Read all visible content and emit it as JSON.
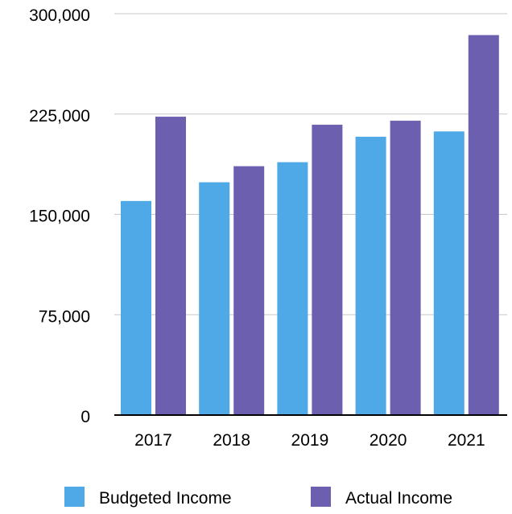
{
  "chart_data": {
    "type": "bar",
    "categories": [
      "2017",
      "2018",
      "2019",
      "2020",
      "2021"
    ],
    "series": [
      {
        "name": "Budgeted Income",
        "color": "#4ea9e6",
        "values": [
          160000,
          174000,
          189000,
          208000,
          212000
        ]
      },
      {
        "name": "Actual Income",
        "color": "#6c5fb0",
        "values": [
          223000,
          186000,
          217000,
          220000,
          284000
        ]
      }
    ],
    "y_ticks": [
      {
        "value": 0,
        "label": "0"
      },
      {
        "value": 75000,
        "label": "75,000"
      },
      {
        "value": 150000,
        "label": "150,000"
      },
      {
        "value": 225000,
        "label": "225,000"
      },
      {
        "value": 300000,
        "label": "300,000"
      }
    ],
    "ylim": [
      0,
      300000
    ],
    "grid": true,
    "legend_position": "bottom"
  }
}
